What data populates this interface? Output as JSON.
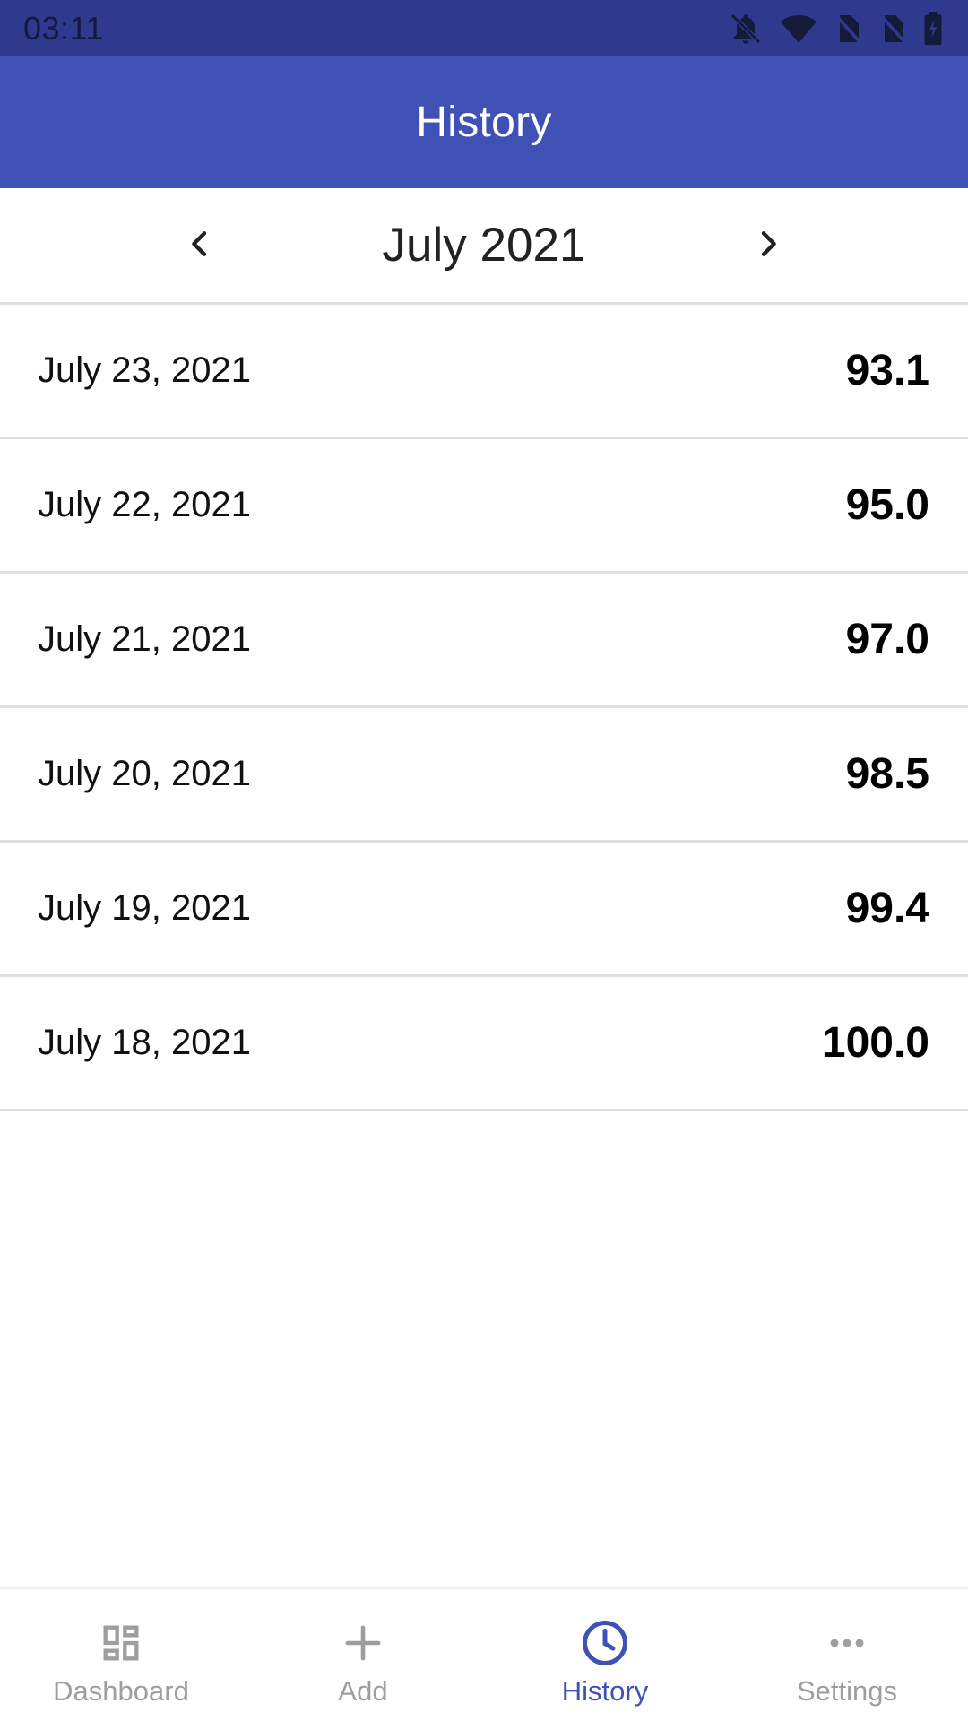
{
  "status_bar": {
    "time": "03:11",
    "icons": [
      "notifications-off-icon",
      "wifi-icon",
      "no-sim-icon",
      "no-sim-icon",
      "battery-charging-icon"
    ]
  },
  "app_bar": {
    "title": "History"
  },
  "month_nav": {
    "label": "July 2021",
    "prev_icon": "chevron-left-icon",
    "next_icon": "chevron-right-icon"
  },
  "history": [
    {
      "date": "July 23, 2021",
      "value": "93.1"
    },
    {
      "date": "July 22, 2021",
      "value": "95.0"
    },
    {
      "date": "July 21, 2021",
      "value": "97.0"
    },
    {
      "date": "July 20, 2021",
      "value": "98.5"
    },
    {
      "date": "July 19, 2021",
      "value": "99.4"
    },
    {
      "date": "July 18, 2021",
      "value": "100.0"
    }
  ],
  "bottom_nav": {
    "items": [
      {
        "label": "Dashboard",
        "icon": "dashboard-icon",
        "active": false
      },
      {
        "label": "Add",
        "icon": "plus-icon",
        "active": false
      },
      {
        "label": "History",
        "icon": "clock-icon",
        "active": true
      },
      {
        "label": "Settings",
        "icon": "more-horizontal-icon",
        "active": false
      }
    ]
  },
  "colors": {
    "status_bar": "#2f3a8f",
    "primary": "#3f51b5",
    "inactive": "#9e9e9e",
    "divider": "#e0e0e0"
  }
}
